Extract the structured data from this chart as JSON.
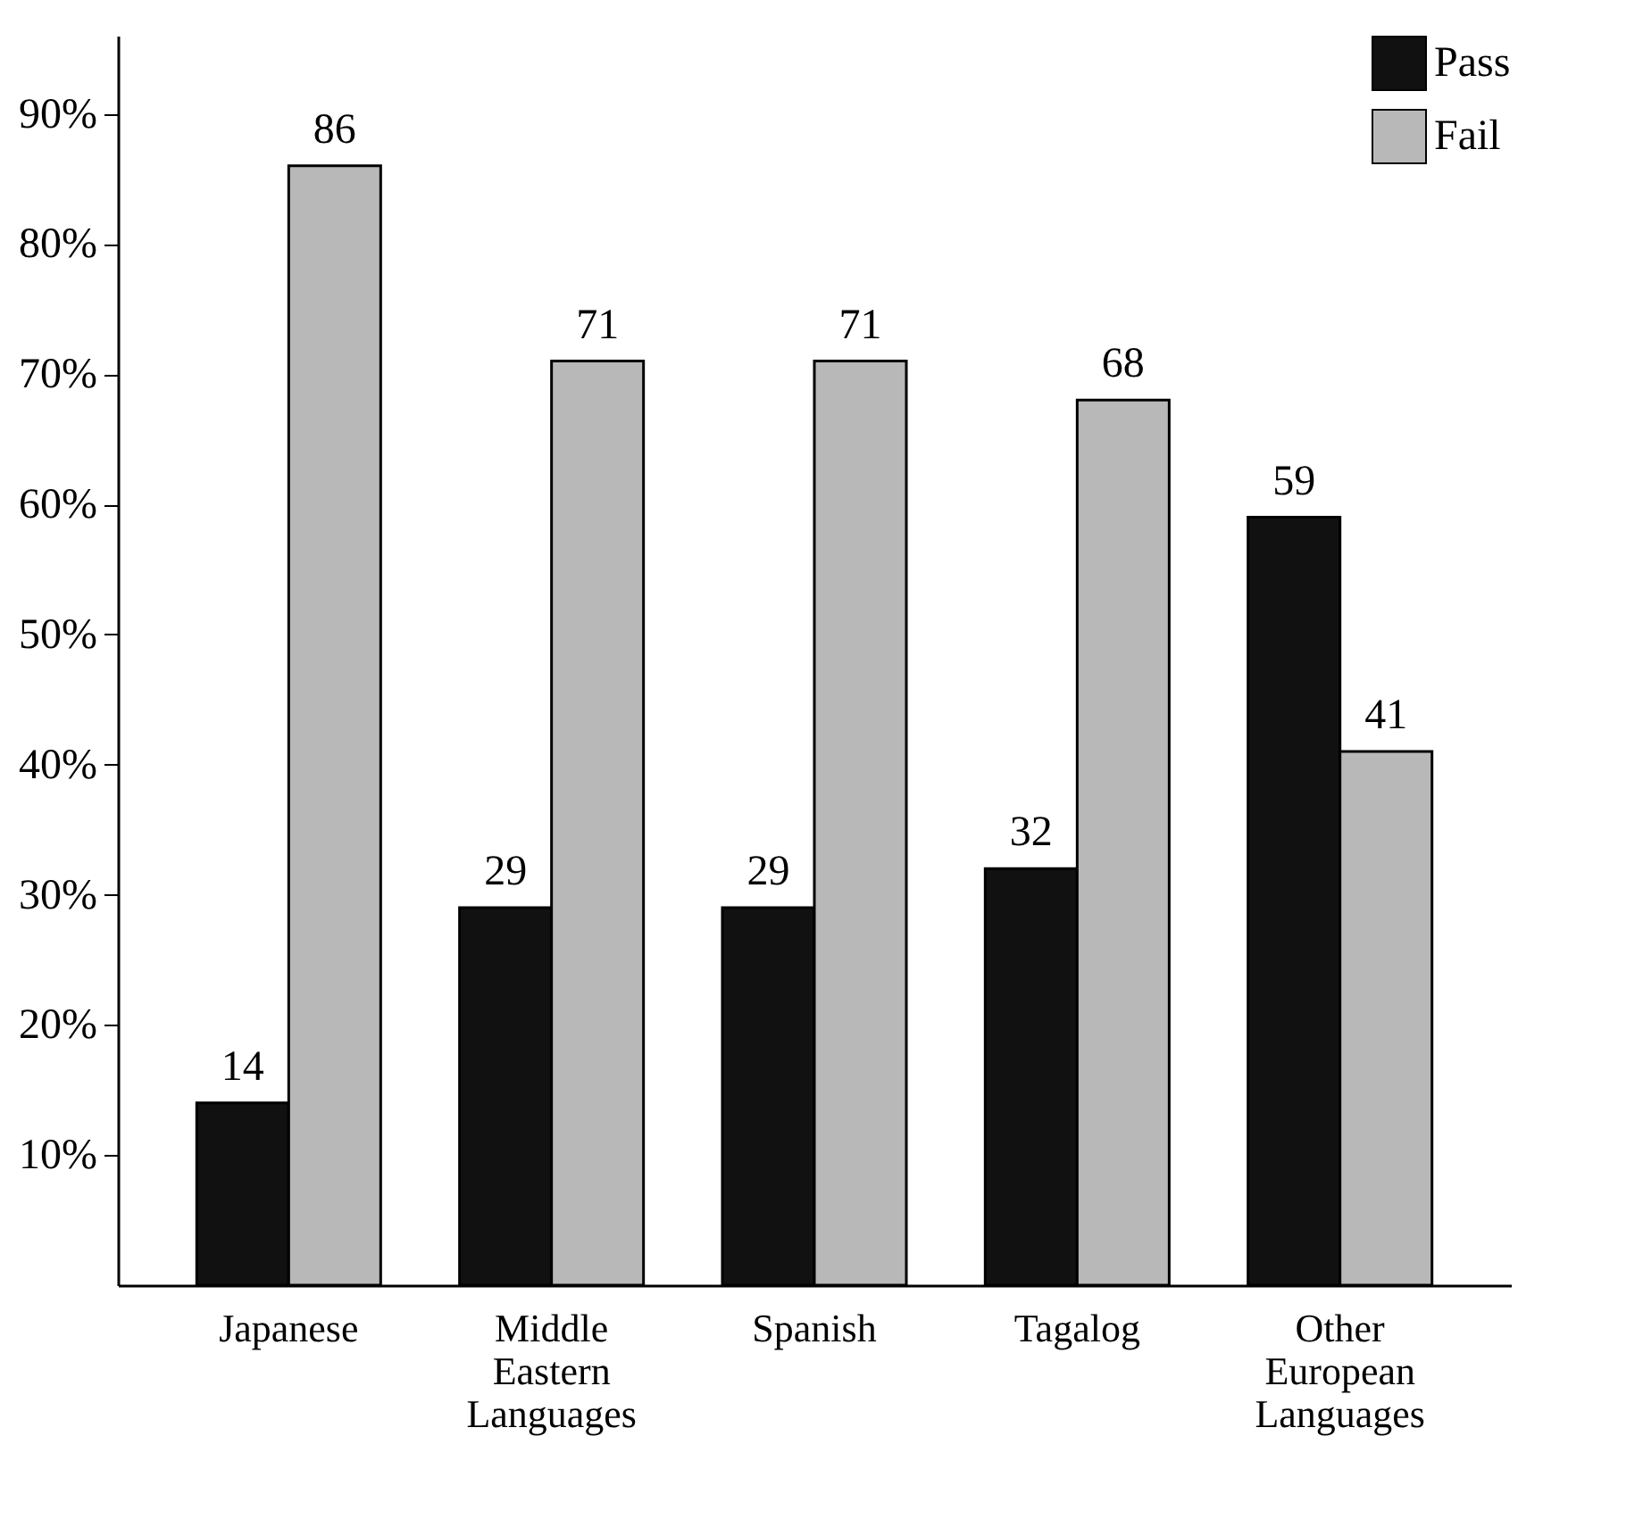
{
  "chart_data": {
    "type": "bar",
    "categories": [
      "Japanese",
      "Middle Eastern Languages",
      "Spanish",
      "Tagalog",
      "Other European Languages"
    ],
    "series": [
      {
        "name": "Pass",
        "color": "#111111",
        "values": [
          14,
          29,
          29,
          32,
          59
        ]
      },
      {
        "name": "Fail",
        "color": "#b8b8b8",
        "values": [
          86,
          71,
          71,
          68,
          41
        ]
      }
    ],
    "ylim": [
      0,
      96
    ],
    "yticks": [
      {
        "value": 10,
        "label": "10%"
      },
      {
        "value": 20,
        "label": "20%"
      },
      {
        "value": 30,
        "label": "30%"
      },
      {
        "value": 40,
        "label": "40%"
      },
      {
        "value": 50,
        "label": "50%"
      },
      {
        "value": 60,
        "label": "60%"
      },
      {
        "value": 70,
        "label": "70%"
      },
      {
        "value": 80,
        "label": "80%"
      },
      {
        "value": 90,
        "label": "90%"
      }
    ],
    "data_labels": true,
    "legend": "top right",
    "grid": false
  }
}
